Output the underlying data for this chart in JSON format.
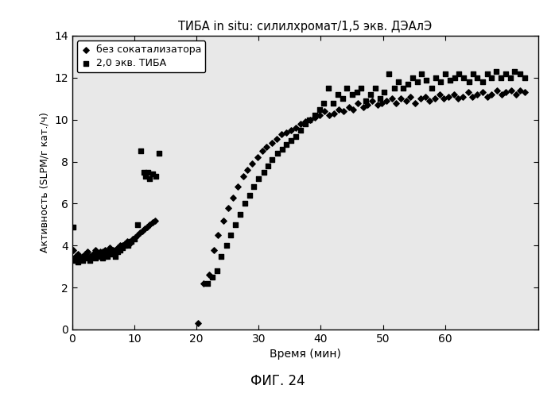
{
  "title": "ТИБА in situ: силилхромат/1,5 экв. ДЭАлЭ",
  "xlabel": "Время (мин)",
  "ylabel": "Активность (SLPM/г кат./ч)",
  "xlim": [
    0,
    75
  ],
  "ylim": [
    0,
    14
  ],
  "xticks": [
    0,
    10,
    20,
    30,
    40,
    50,
    60
  ],
  "yticks": [
    0,
    2,
    4,
    6,
    8,
    10,
    12,
    14
  ],
  "caption": "ФИГ. 24",
  "legend_label1": "без сокатализатора",
  "legend_label2": "2,0 экв. ТИБА",
  "series1_x": [
    0.2,
    0.5,
    0.9,
    1.3,
    1.7,
    2.1,
    2.5,
    2.9,
    3.3,
    3.7,
    4.1,
    4.5,
    4.9,
    5.3,
    5.7,
    6.1,
    6.5,
    6.9,
    7.3,
    7.7,
    8.1,
    8.5,
    8.9,
    9.3,
    9.7,
    10.1,
    10.5,
    10.9,
    11.3,
    11.7,
    12.1,
    12.5,
    12.9,
    13.3,
    20.3,
    21.2,
    22.0,
    22.8,
    23.5,
    24.3,
    25.1,
    25.9,
    26.7,
    27.5,
    28.2,
    29.0,
    29.8,
    30.6,
    31.3,
    32.1,
    32.9,
    33.7,
    34.4,
    35.2,
    36.0,
    36.8,
    37.5,
    38.3,
    39.1,
    39.8,
    40.6,
    41.4,
    42.1,
    42.9,
    43.7,
    44.5,
    45.2,
    46.0,
    46.8,
    47.5,
    48.3,
    49.1,
    49.8,
    50.6,
    51.4,
    52.1,
    52.9,
    53.7,
    54.4,
    55.2,
    56.0,
    56.8,
    57.5,
    58.3,
    59.1,
    59.8,
    60.6,
    61.4,
    62.1,
    62.9,
    63.7,
    64.4,
    65.2,
    66.0,
    66.8,
    67.5,
    68.3,
    69.1,
    69.8,
    70.6,
    71.4,
    72.1,
    72.8
  ],
  "series1_y": [
    3.8,
    3.5,
    3.6,
    3.4,
    3.5,
    3.6,
    3.7,
    3.5,
    3.6,
    3.8,
    3.6,
    3.7,
    3.7,
    3.8,
    3.6,
    3.9,
    3.8,
    3.8,
    3.9,
    4.0,
    4.0,
    4.1,
    4.2,
    4.1,
    4.3,
    4.4,
    4.5,
    4.6,
    4.7,
    4.8,
    4.9,
    5.0,
    5.1,
    5.2,
    0.3,
    2.2,
    2.6,
    3.8,
    4.5,
    5.2,
    5.8,
    6.3,
    6.8,
    7.3,
    7.6,
    7.9,
    8.2,
    8.5,
    8.7,
    8.9,
    9.1,
    9.3,
    9.4,
    9.5,
    9.6,
    9.8,
    9.9,
    10.0,
    10.1,
    10.2,
    10.4,
    10.2,
    10.3,
    10.5,
    10.4,
    10.6,
    10.5,
    10.8,
    10.6,
    10.7,
    10.9,
    10.7,
    10.8,
    10.9,
    11.0,
    10.8,
    11.0,
    10.9,
    11.1,
    10.8,
    11.0,
    11.1,
    10.9,
    11.0,
    11.2,
    11.0,
    11.1,
    11.2,
    11.0,
    11.1,
    11.3,
    11.1,
    11.2,
    11.3,
    11.1,
    11.2,
    11.4,
    11.2,
    11.3,
    11.4,
    11.2,
    11.4,
    11.3
  ],
  "series2_x": [
    0.1,
    0.5,
    0.9,
    1.3,
    1.7,
    2.1,
    2.5,
    2.9,
    3.3,
    3.7,
    4.1,
    4.5,
    4.9,
    5.3,
    5.7,
    6.1,
    6.5,
    6.9,
    7.3,
    7.7,
    8.1,
    8.5,
    9.0,
    9.5,
    10.0,
    10.5,
    11.0,
    11.5,
    11.8,
    12.2,
    12.5,
    13.0,
    13.5,
    14.0,
    21.8,
    22.5,
    23.3,
    24.0,
    24.8,
    25.5,
    26.3,
    27.0,
    27.8,
    28.5,
    29.2,
    30.0,
    30.8,
    31.5,
    32.2,
    33.0,
    33.8,
    34.5,
    35.2,
    36.0,
    36.8,
    37.5,
    38.2,
    39.0,
    39.8,
    40.5,
    41.2,
    42.0,
    42.8,
    43.5,
    44.2,
    45.0,
    45.8,
    46.5,
    47.2,
    48.0,
    48.8,
    49.5,
    50.2,
    51.0,
    51.8,
    52.5,
    53.2,
    54.0,
    54.8,
    55.5,
    56.2,
    57.0,
    57.8,
    58.5,
    59.2,
    60.0,
    60.8,
    61.5,
    62.2,
    63.0,
    63.8,
    64.5,
    65.2,
    66.0,
    66.8,
    67.5,
    68.2,
    69.0,
    69.8,
    70.5,
    71.2,
    72.0,
    72.8
  ],
  "series2_y": [
    4.9,
    3.3,
    3.2,
    3.4,
    3.3,
    3.5,
    3.4,
    3.3,
    3.5,
    3.4,
    3.6,
    3.5,
    3.4,
    3.6,
    3.5,
    3.7,
    3.6,
    3.5,
    3.7,
    3.8,
    3.9,
    4.0,
    4.0,
    4.2,
    4.3,
    5.0,
    8.5,
    7.5,
    7.3,
    7.5,
    7.2,
    7.4,
    7.3,
    8.4,
    2.2,
    2.5,
    2.8,
    3.5,
    4.0,
    4.5,
    5.0,
    5.5,
    6.0,
    6.4,
    6.8,
    7.2,
    7.5,
    7.8,
    8.1,
    8.4,
    8.6,
    8.8,
    9.0,
    9.2,
    9.5,
    9.8,
    10.0,
    10.2,
    10.5,
    10.8,
    11.5,
    10.8,
    11.2,
    11.0,
    11.5,
    11.2,
    11.3,
    11.5,
    10.9,
    11.2,
    11.5,
    11.0,
    11.3,
    12.2,
    11.5,
    11.8,
    11.5,
    11.7,
    12.0,
    11.8,
    12.2,
    11.9,
    11.5,
    12.0,
    11.8,
    12.2,
    11.9,
    12.0,
    12.2,
    12.0,
    11.8,
    12.2,
    12.0,
    11.8,
    12.2,
    12.0,
    12.3,
    12.0,
    12.2,
    12.0,
    12.3,
    12.2,
    12.0
  ]
}
